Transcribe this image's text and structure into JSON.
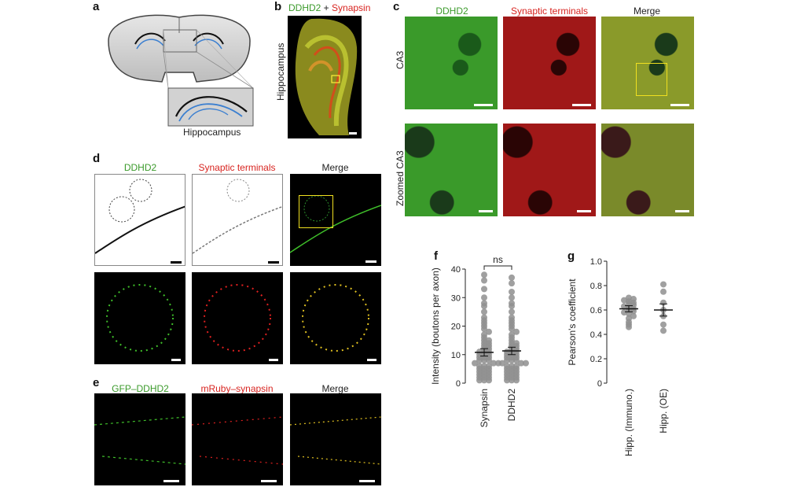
{
  "panels": {
    "a": {
      "label": "a",
      "region_label": "Hippocampus"
    },
    "b": {
      "label": "b",
      "title_green": "DDHD2",
      "title_plus": " + ",
      "title_red": "Synapsin",
      "side_label": "Hippocampus"
    },
    "c": {
      "label": "c",
      "col1": "DDHD2",
      "col2": "Synaptic terminals",
      "col3": "Merge",
      "row1": "CA3",
      "row2": "Zoomed CA3"
    },
    "d": {
      "label": "d",
      "col1": "DDHD2",
      "col2": "Synaptic terminals",
      "col3": "Merge"
    },
    "e": {
      "label": "e",
      "col1": "GFP–DDHD2",
      "col2": "mRuby–synapsin",
      "col3": "Merge"
    },
    "f": {
      "label": "f",
      "sig": "ns"
    },
    "g": {
      "label": "g"
    }
  },
  "colors": {
    "green": "#3a9a2a",
    "red": "#d8231f",
    "yellow": "#f0e020"
  },
  "chart_data": [
    {
      "panel": "f",
      "type": "scatter",
      "ylabel": "Intensity (boutons per axon)",
      "categories": [
        "Synapsin",
        "DDHD2"
      ],
      "ylim": [
        0,
        40
      ],
      "yticks": [
        0,
        10,
        20,
        30,
        40
      ],
      "means": [
        10.8,
        11.3
      ],
      "sem": [
        1.3,
        1.3
      ],
      "series": [
        {
          "values": [
            38,
            36,
            33,
            30,
            28,
            27,
            25,
            23,
            22,
            21,
            20,
            19,
            18,
            17,
            16,
            15,
            15,
            14,
            14,
            13,
            13,
            12,
            12,
            11,
            11,
            11,
            10,
            10,
            10,
            9,
            9,
            9,
            8,
            8,
            8,
            7,
            7,
            7,
            6,
            6,
            6,
            5,
            5,
            5,
            4,
            4,
            4,
            3,
            3,
            3,
            2,
            2,
            2,
            1,
            1,
            1
          ]
        },
        {
          "values": [
            37,
            35,
            32,
            30,
            28,
            27,
            25,
            23,
            22,
            21,
            20,
            19,
            18,
            17,
            16,
            15,
            14,
            14,
            13,
            13,
            12,
            12,
            11,
            11,
            11,
            10,
            10,
            10,
            9,
            9,
            9,
            8,
            8,
            8,
            7,
            7,
            7,
            6,
            6,
            6,
            5,
            5,
            5,
            4,
            4,
            4,
            3,
            3,
            3,
            2,
            2,
            2,
            1,
            1,
            1
          ]
        }
      ],
      "annotation": "ns"
    },
    {
      "panel": "g",
      "type": "scatter",
      "ylabel": "Pearson's coefficient",
      "categories": [
        "Hipp. (Immuno.)",
        "Hipp. (OE)"
      ],
      "ylim": [
        0,
        1.0
      ],
      "yticks": [
        0,
        0.2,
        0.4,
        0.6,
        0.8,
        1.0
      ],
      "means": [
        0.61,
        0.6
      ],
      "sem": [
        0.025,
        0.05
      ],
      "series": [
        {
          "values": [
            0.7,
            0.69,
            0.68,
            0.67,
            0.66,
            0.65,
            0.64,
            0.63,
            0.62,
            0.61,
            0.6,
            0.59,
            0.58,
            0.57,
            0.55,
            0.53,
            0.5,
            0.48,
            0.46
          ]
        },
        {
          "values": [
            0.81,
            0.75,
            0.66,
            0.6,
            0.55,
            0.48,
            0.43
          ]
        }
      ]
    }
  ]
}
